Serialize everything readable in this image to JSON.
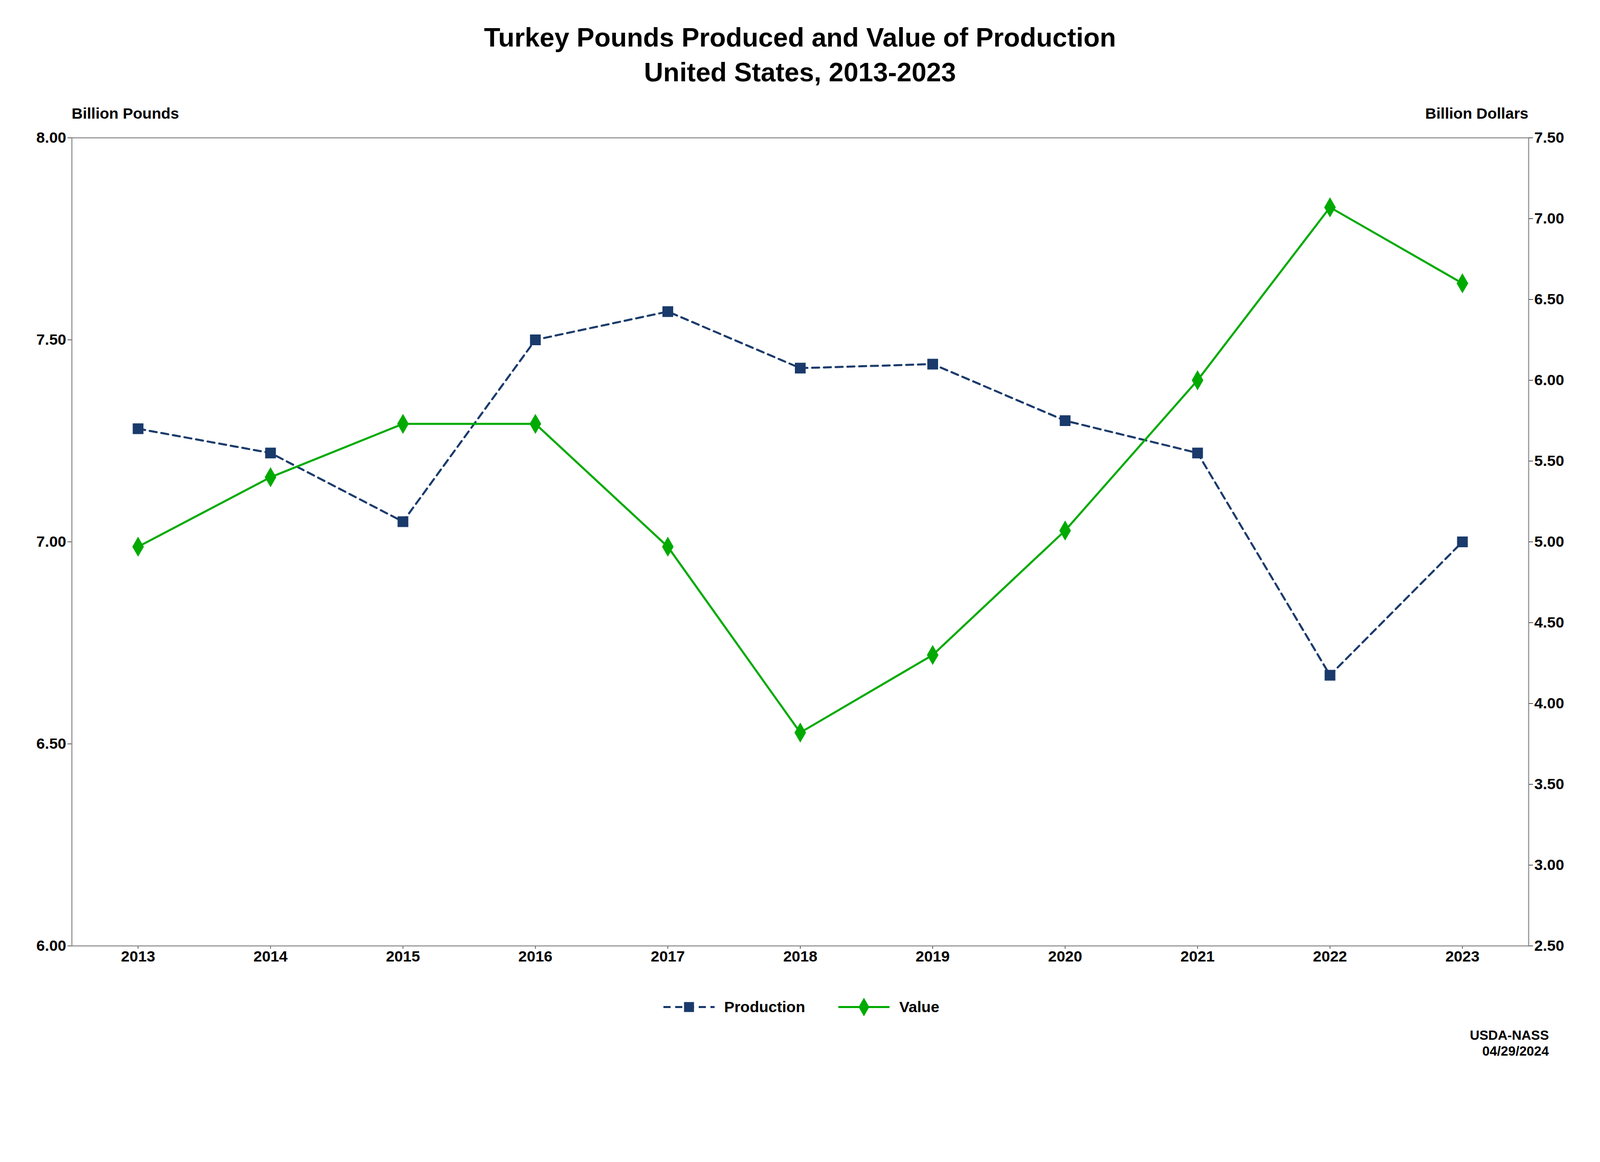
{
  "chart_data": {
    "type": "line",
    "title": "Turkey Pounds Produced and Value of Production",
    "subtitle": "United States, 2013-2023",
    "ylabel": "Billion Pounds",
    "y2label": "Billion Dollars",
    "x": [
      2013,
      2014,
      2015,
      2016,
      2017,
      2018,
      2019,
      2020,
      2021,
      2022,
      2023
    ],
    "xlim": [
      2012.5,
      2023.5
    ],
    "xticks": [
      2013,
      2014,
      2015,
      2016,
      2017,
      2018,
      2019,
      2020,
      2021,
      2022,
      2023
    ],
    "ylim": [
      6.0,
      8.0
    ],
    "yticks": [
      {
        "value": 6.0,
        "label": "6.00"
      },
      {
        "value": 6.5,
        "label": "6.50"
      },
      {
        "value": 7.0,
        "label": "7.00"
      },
      {
        "value": 7.5,
        "label": "7.50"
      },
      {
        "value": 8.0,
        "label": "8.00"
      }
    ],
    "y2lim": [
      2.5,
      7.5
    ],
    "y2ticks": [
      {
        "value": 2.5,
        "label": "2.50"
      },
      {
        "value": 3.0,
        "label": "3.00"
      },
      {
        "value": 3.5,
        "label": "3.50"
      },
      {
        "value": 4.0,
        "label": "4.00"
      },
      {
        "value": 4.5,
        "label": "4.50"
      },
      {
        "value": 5.0,
        "label": "5.00"
      },
      {
        "value": 5.5,
        "label": "5.50"
      },
      {
        "value": 6.0,
        "label": "6.00"
      },
      {
        "value": 6.5,
        "label": "6.50"
      },
      {
        "value": 7.0,
        "label": "7.00"
      },
      {
        "value": 7.5,
        "label": "7.50"
      }
    ],
    "series": [
      {
        "name": "Production",
        "color": "#1a3a6b",
        "line_style": "dashed",
        "marker": "square",
        "values": [
          7.28,
          7.22,
          7.05,
          7.5,
          7.57,
          7.43,
          7.44,
          7.3,
          7.22,
          6.67,
          7.0
        ]
      },
      {
        "name": "Value",
        "color": "#00aa00",
        "line_style": "solid",
        "marker": "diamond",
        "axis": "y2",
        "values": [
          4.97,
          5.4,
          5.73,
          5.73,
          4.97,
          3.82,
          4.3,
          5.07,
          6.0,
          7.07,
          6.6
        ]
      }
    ],
    "legend": "bottom",
    "grid": false,
    "annotations": [
      "USDA-NASS\n04/29/2024"
    ]
  }
}
